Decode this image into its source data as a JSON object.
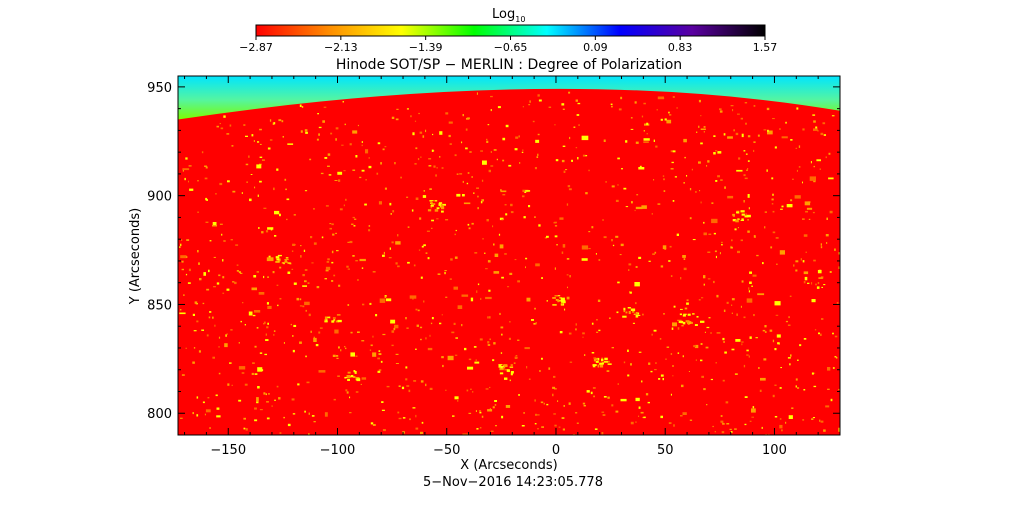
{
  "chart_data": {
    "type": "heatmap",
    "title": "Hinode SOT/SP − MERLIN : Degree of Polarization",
    "xlabel": "X (Arcseconds)",
    "ylabel": "Y (Arcseconds)",
    "date_label": "5−Nov−2016 14:23:05.778",
    "xlim": [
      -173,
      130
    ],
    "ylim": [
      790,
      955
    ],
    "x_ticks": [
      -150,
      -100,
      -50,
      0,
      50,
      100
    ],
    "x_tick_labels": [
      "−150",
      "−100",
      "−50",
      "0",
      "50",
      "100"
    ],
    "y_ticks": [
      800,
      850,
      900,
      950
    ],
    "y_tick_labels": [
      "800",
      "850",
      "900",
      "950"
    ],
    "colorbar": {
      "label_main": "Log",
      "label_sub": "10",
      "range": [
        -2.87,
        1.57
      ],
      "ticks": [
        -2.87,
        -2.13,
        -1.39,
        -0.65,
        0.09,
        0.83,
        1.57
      ],
      "tick_labels": [
        "−2.87",
        "−2.13",
        "−1.39",
        "−0.65",
        "0.09",
        "0.83",
        "1.57"
      ],
      "colors": [
        "#ff0000",
        "#ff8c00",
        "#ffff00",
        "#00ff00",
        "#00ffff",
        "#0000ff",
        "#5a00a0",
        "#000000"
      ]
    },
    "background_color": "#ff0000",
    "limb_color_inner": "#7cfc00",
    "limb_color_outer": "#00e5ff",
    "limb_edge_y": {
      "center": 949,
      "left": 935,
      "right": 939
    },
    "grid": false
  }
}
